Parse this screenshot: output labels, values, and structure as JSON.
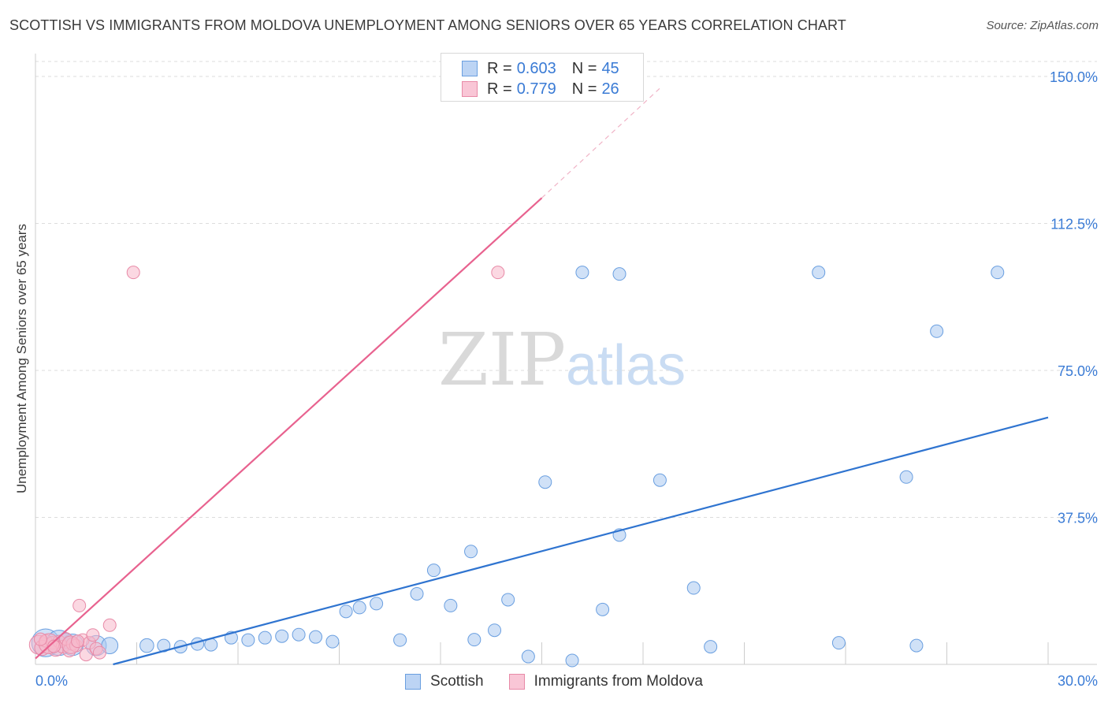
{
  "chart_data": {
    "type": "scatter",
    "title": "SCOTTISH VS IMMIGRANTS FROM MOLDOVA UNEMPLOYMENT AMONG SENIORS OVER 65 YEARS CORRELATION CHART",
    "source": "Source: ZipAtlas.com",
    "xlabel": "",
    "ylabel": "Unemployment Among Seniors over 65 years",
    "xlim": [
      0,
      30
    ],
    "ylim": [
      0,
      150
    ],
    "x_tick_labels": [
      "0.0%",
      "30.0%"
    ],
    "y_ticks": [
      {
        "value": 150,
        "label": "150.0%"
      },
      {
        "value": 112.5,
        "label": "112.5%"
      },
      {
        "value": 75,
        "label": "75.0%"
      },
      {
        "value": 37.5,
        "label": "37.5%"
      }
    ],
    "watermark": "ZIPatlas",
    "legend": {
      "r_label": "R =",
      "n_label": "N =",
      "entries": [
        {
          "name": "Scottish",
          "r": "0.603",
          "n": "45",
          "color": "#a9c8f0",
          "stroke": "#6a9fe0"
        },
        {
          "name": "Immigrants from Moldova",
          "r": "0.779",
          "n": "26",
          "color": "#f7b8cb",
          "stroke": "#e88aa7"
        }
      ]
    },
    "series": [
      {
        "name": "Scottish",
        "color": "#a9c8f0",
        "stroke": "#6a9fe0",
        "trend": {
          "color": "#2f74d0",
          "x0": 2.3,
          "y0": 0,
          "x1": 30,
          "y1": 63
        },
        "points": [
          {
            "x": 0.3,
            "y": 5.5,
            "s": 2.2
          },
          {
            "x": 0.7,
            "y": 5.5,
            "s": 2.0
          },
          {
            "x": 1.1,
            "y": 5.0,
            "s": 1.7
          },
          {
            "x": 1.8,
            "y": 4.8,
            "s": 1.6
          },
          {
            "x": 2.2,
            "y": 4.8,
            "s": 1.3
          },
          {
            "x": 3.3,
            "y": 4.8,
            "s": 1.1
          },
          {
            "x": 3.8,
            "y": 4.8,
            "s": 1.0
          },
          {
            "x": 4.3,
            "y": 4.5,
            "s": 1.0
          },
          {
            "x": 4.8,
            "y": 5.2,
            "s": 1.0
          },
          {
            "x": 5.2,
            "y": 5.0,
            "s": 1.0
          },
          {
            "x": 5.8,
            "y": 6.8,
            "s": 1.0
          },
          {
            "x": 6.3,
            "y": 6.2,
            "s": 1.0
          },
          {
            "x": 6.8,
            "y": 6.8,
            "s": 1.0
          },
          {
            "x": 7.3,
            "y": 7.2,
            "s": 1.0
          },
          {
            "x": 7.8,
            "y": 7.6,
            "s": 1.0
          },
          {
            "x": 8.3,
            "y": 7.0,
            "s": 1.0
          },
          {
            "x": 8.8,
            "y": 5.8,
            "s": 1.0
          },
          {
            "x": 9.2,
            "y": 13.5,
            "s": 1.0
          },
          {
            "x": 9.6,
            "y": 14.5,
            "s": 1.0
          },
          {
            "x": 10.1,
            "y": 15.5,
            "s": 1.0
          },
          {
            "x": 10.8,
            "y": 6.2,
            "s": 1.0
          },
          {
            "x": 11.3,
            "y": 18.0,
            "s": 1.0
          },
          {
            "x": 11.8,
            "y": 24.0,
            "s": 1.0
          },
          {
            "x": 12.3,
            "y": 15.0,
            "s": 1.0
          },
          {
            "x": 12.9,
            "y": 28.8,
            "s": 1.0
          },
          {
            "x": 13.0,
            "y": 6.3,
            "s": 1.0
          },
          {
            "x": 13.6,
            "y": 8.7,
            "s": 1.0
          },
          {
            "x": 14.0,
            "y": 16.5,
            "s": 1.0
          },
          {
            "x": 14.6,
            "y": 2.0,
            "s": 1.0
          },
          {
            "x": 15.1,
            "y": 46.5,
            "s": 1.0
          },
          {
            "x": 15.9,
            "y": 1.0,
            "s": 1.0
          },
          {
            "x": 16.2,
            "y": 100.0,
            "s": 1.0
          },
          {
            "x": 16.8,
            "y": 14.0,
            "s": 1.0
          },
          {
            "x": 17.3,
            "y": 33.0,
            "s": 1.0
          },
          {
            "x": 17.3,
            "y": 99.6,
            "s": 1.0
          },
          {
            "x": 18.5,
            "y": 47.0,
            "s": 1.0
          },
          {
            "x": 19.5,
            "y": 19.5,
            "s": 1.0
          },
          {
            "x": 20.0,
            "y": 4.5,
            "s": 1.0
          },
          {
            "x": 23.2,
            "y": 100.0,
            "s": 1.0
          },
          {
            "x": 23.8,
            "y": 5.5,
            "s": 1.0
          },
          {
            "x": 25.8,
            "y": 47.8,
            "s": 1.0
          },
          {
            "x": 26.1,
            "y": 4.8,
            "s": 1.0
          },
          {
            "x": 26.7,
            "y": 85.0,
            "s": 1.0
          },
          {
            "x": 28.5,
            "y": 100.0,
            "s": 1.0
          },
          {
            "x": 0.9,
            "y": 6.0,
            "s": 1.2
          }
        ]
      },
      {
        "name": "Immigrants from Moldova",
        "color": "#f7b8cb",
        "stroke": "#e88aa7",
        "trend": {
          "color": "#e8628f",
          "x0": 0,
          "y0": 1.5,
          "x1": 15.0,
          "y1": 119.0,
          "dash_to_x": 18.5,
          "dash_to_y": 147.0
        },
        "points": [
          {
            "x": 0.1,
            "y": 5.0,
            "s": 1.5
          },
          {
            "x": 0.2,
            "y": 4.2,
            "s": 1.2
          },
          {
            "x": 0.3,
            "y": 6.0,
            "s": 1.0
          },
          {
            "x": 0.5,
            "y": 5.5,
            "s": 1.0
          },
          {
            "x": 0.6,
            "y": 4.0,
            "s": 1.2
          },
          {
            "x": 0.7,
            "y": 5.8,
            "s": 1.0
          },
          {
            "x": 0.8,
            "y": 4.5,
            "s": 1.0
          },
          {
            "x": 0.9,
            "y": 6.5,
            "s": 1.0
          },
          {
            "x": 1.0,
            "y": 3.5,
            "s": 1.0
          },
          {
            "x": 1.1,
            "y": 5.2,
            "s": 1.0
          },
          {
            "x": 1.2,
            "y": 4.8,
            "s": 1.0
          },
          {
            "x": 1.3,
            "y": 15.0,
            "s": 1.0
          },
          {
            "x": 1.4,
            "y": 6.2,
            "s": 1.0
          },
          {
            "x": 1.5,
            "y": 2.5,
            "s": 1.0
          },
          {
            "x": 1.6,
            "y": 5.5,
            "s": 1.0
          },
          {
            "x": 1.7,
            "y": 7.5,
            "s": 1.0
          },
          {
            "x": 1.8,
            "y": 4.0,
            "s": 1.0
          },
          {
            "x": 1.9,
            "y": 3.0,
            "s": 1.0
          },
          {
            "x": 2.2,
            "y": 10.0,
            "s": 1.0
          },
          {
            "x": 2.9,
            "y": 100.0,
            "s": 1.0
          },
          {
            "x": 13.7,
            "y": 100.0,
            "s": 1.0
          },
          {
            "x": 0.4,
            "y": 5.3,
            "s": 1.6
          },
          {
            "x": 0.55,
            "y": 4.6,
            "s": 1.0
          },
          {
            "x": 1.05,
            "y": 5.0,
            "s": 1.4
          },
          {
            "x": 1.25,
            "y": 5.9,
            "s": 1.0
          },
          {
            "x": 0.15,
            "y": 6.4,
            "s": 1.0
          }
        ]
      }
    ]
  }
}
